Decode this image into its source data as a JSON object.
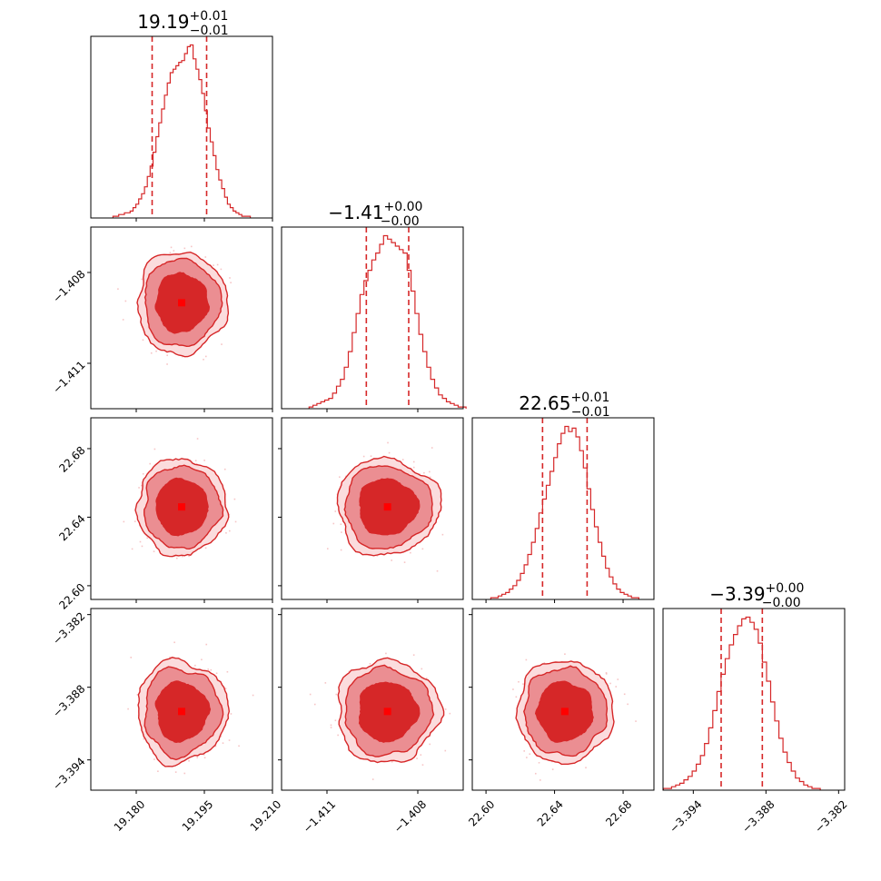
{
  "chart_data": {
    "type": "corner",
    "color": "#d62728",
    "parameters": [
      {
        "range": [
          19.17,
          19.21
        ],
        "ticks": [
          19.18,
          19.195,
          19.21
        ],
        "tick_labels": [
          "19.180",
          "19.195",
          "19.210"
        ],
        "median": 19.19,
        "q_lo": 19.1835,
        "q_hi": 19.1955,
        "sigma": 0.0042,
        "title": {
          "value": "19.19",
          "plus": "+0.01",
          "minus": "−0.01"
        },
        "hist_counts": [
          1,
          1,
          2,
          2,
          3,
          3,
          4,
          6,
          8,
          11,
          14,
          18,
          24,
          30,
          38,
          47,
          55,
          63,
          71,
          78,
          84,
          86,
          88,
          90,
          91,
          95,
          99,
          100,
          92,
          86,
          80,
          72,
          62,
          52,
          44,
          36,
          28,
          22,
          17,
          12,
          8,
          6,
          4,
          3,
          2,
          1,
          1,
          1
        ]
      },
      {
        "range": [
          -1.4125,
          -1.4065
        ],
        "ticks": [
          -1.411,
          -1.408
        ],
        "tick_labels": [
          "−1.411",
          "−1.408"
        ],
        "median": -1.409,
        "q_lo": -1.4097,
        "q_hi": -1.4083,
        "sigma": 0.00072,
        "title": {
          "value": "−1.41",
          "plus": "+0.00",
          "minus": "−0.00"
        },
        "hist_counts": [
          1,
          2,
          3,
          4,
          5,
          6,
          9,
          13,
          17,
          24,
          33,
          44,
          55,
          66,
          74,
          80,
          86,
          90,
          95,
          100,
          98,
          96,
          94,
          92,
          90,
          80,
          68,
          55,
          43,
          33,
          24,
          17,
          12,
          8,
          6,
          4,
          3,
          2,
          1,
          1
        ]
      },
      {
        "range": [
          22.592,
          22.698
        ],
        "ticks": [
          22.6,
          22.64,
          22.68
        ],
        "tick_labels": [
          "22.60",
          "22.64",
          "22.68"
        ],
        "median": 22.646,
        "q_lo": 22.633,
        "q_hi": 22.659,
        "sigma": 0.012,
        "title": {
          "value": "22.65",
          "plus": "+0.01",
          "minus": "−0.01"
        },
        "hist_counts": [
          1,
          1,
          2,
          3,
          4,
          6,
          8,
          11,
          15,
          20,
          26,
          33,
          41,
          50,
          58,
          66,
          74,
          82,
          90,
          96,
          100,
          97,
          99,
          94,
          86,
          76,
          64,
          52,
          42,
          33,
          25,
          18,
          13,
          9,
          6,
          4,
          3,
          2,
          1,
          1
        ]
      },
      {
        "range": [
          -3.3965,
          -3.3815
        ],
        "ticks": [
          -3.394,
          -3.388,
          -3.382
        ],
        "tick_labels": [
          "−3.394",
          "−3.388",
          "−3.382"
        ],
        "median": -3.39,
        "q_lo": -3.3917,
        "q_hi": -3.3883,
        "sigma": 0.0018,
        "title": {
          "value": "−3.39",
          "plus": "+0.00",
          "minus": "−0.00"
        },
        "hist_counts": [
          1,
          1,
          2,
          3,
          4,
          6,
          8,
          11,
          15,
          20,
          27,
          36,
          46,
          57,
          67,
          76,
          84,
          90,
          95,
          99,
          100,
          97,
          93,
          85,
          74,
          63,
          51,
          40,
          30,
          22,
          16,
          11,
          7,
          5,
          3,
          2,
          1,
          1
        ]
      }
    ],
    "levels": [
      "1-sigma",
      "2-sigma",
      "outer"
    ],
    "grid": false
  }
}
